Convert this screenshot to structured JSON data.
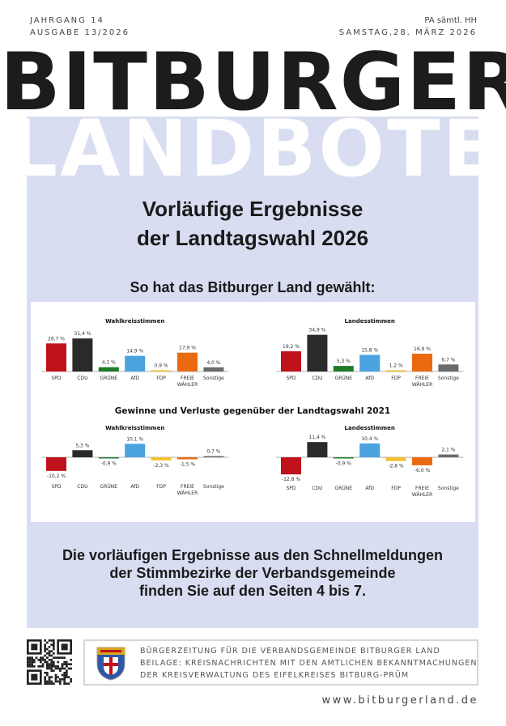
{
  "header": {
    "volume": "JAHRGANG 14",
    "issue": "AUSGABE 13/2026",
    "distribution": "PA sämtl. HH",
    "date": "SAMSTAG,28. MÄRZ 2026"
  },
  "masthead": {
    "line1": "BITBURGER",
    "line2": "LANDBOTE"
  },
  "headline": {
    "line1": "Vorläufige Ergebnisse",
    "line2": "der Landtagswahl 2026"
  },
  "subhead": "So hat das Bitburger Land gewählt:",
  "changes_title": "Gewinne und Verluste gegenüber der Landtagswahl 2021",
  "chart_data": [
    {
      "type": "bar",
      "title": "Wahlkreisstimmen",
      "categories": [
        "SPD",
        "CDU",
        "GRÜNE",
        "AfD",
        "FDP",
        "FREIE WÄHLER",
        "Sonstige"
      ],
      "values": [
        26.7,
        31.4,
        4.1,
        14.9,
        0.9,
        17.9,
        4.0
      ],
      "labels": [
        "26,7 %",
        "31,4 %",
        "4,1 %",
        "14,9 %",
        "0,9 %",
        "17,9 %",
        "4,0 %"
      ]
    },
    {
      "type": "bar",
      "title": "Landesstimmen",
      "categories": [
        "SPD",
        "CDU",
        "GRÜNE",
        "AfD",
        "FDP",
        "FREIE WÄHLER",
        "Sonstige"
      ],
      "values": [
        19.2,
        34.9,
        5.3,
        15.8,
        1.2,
        16.9,
        6.7
      ],
      "labels": [
        "19,2 %",
        "34,9 %",
        "5,3 %",
        "15,8 %",
        "1,2 %",
        "16,9 %",
        "6,7 %"
      ]
    },
    {
      "type": "bar",
      "title": "Wahlkreisstimmen",
      "categories": [
        "SPD",
        "CDU",
        "GRÜNE",
        "AfD",
        "FDP",
        "FREIE WÄHLER",
        "Sonstige"
      ],
      "values": [
        -10.2,
        5.3,
        -0.9,
        10.1,
        -2.3,
        -1.5,
        0.7
      ],
      "labels": [
        "-10,2 %",
        "5,3 %",
        "-0,9 %",
        "10,1 %",
        "-2,3 %",
        "-1,5 %",
        "0,7 %"
      ]
    },
    {
      "type": "bar",
      "title": "Landesstimmen",
      "categories": [
        "SPD",
        "CDU",
        "GRÜNE",
        "AfD",
        "FDP",
        "FREIE WÄHLER",
        "Sonstige"
      ],
      "values": [
        -12.8,
        11.4,
        -0.9,
        10.4,
        -2.8,
        -6.0,
        2.1
      ],
      "labels": [
        "-12,8 %",
        "11,4 %",
        "-0,9 %",
        "10,4 %",
        "-2,8 %",
        "-6,0 %",
        "2,1 %"
      ]
    }
  ],
  "party_colors": [
    "#c0121a",
    "#2a2a2a",
    "#1f7a2a",
    "#4aa3df",
    "#f2c12e",
    "#ea6a10",
    "#6b6b6b"
  ],
  "bottom": {
    "line1": "Die vorläufigen Ergebnisse aus den Schnellmeldungen",
    "line2": "der Stimmbezirke der Verbandsgemeinde",
    "line3": "finden Sie auf den Seiten 4 bis 7."
  },
  "footer": {
    "line1": "BÜRGERZEITUNG FÜR DIE VERBANDSGEMEINDE BITBURGER LAND",
    "line2": "BEILAGE: KREISNACHRICHTEN MIT DEN AMTLICHEN BEKANNTMACHUNGEN",
    "line3": "DER KREISVERWALTUNG DES EIFELKREISES BITBURG-PRÜM",
    "url": "www.bitburgerland.de"
  },
  "panel_color": "#d9ddf1"
}
